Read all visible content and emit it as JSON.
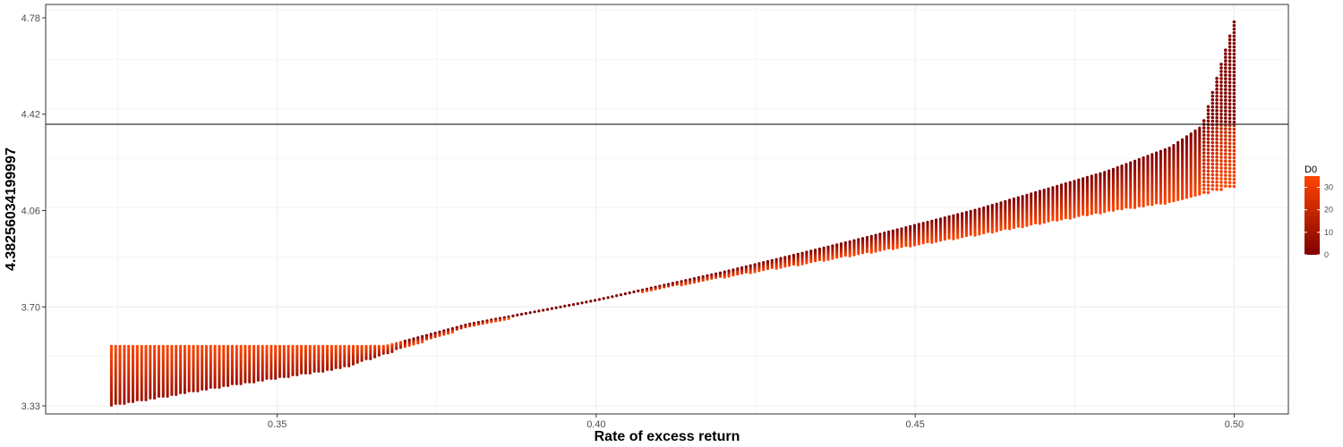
{
  "chart_data": {
    "type": "scatter",
    "xlabel": "Rate of excess return",
    "ylabel": "4.38256034199997",
    "xlim": [
      0.3137,
      0.5085
    ],
    "ylim": [
      3.3,
      4.83
    ],
    "x_ticks": [
      0.35,
      0.4,
      0.45,
      0.5
    ],
    "x_tick_labels": [
      "0.35",
      "0.40",
      "0.45",
      "0.50"
    ],
    "y_ticks": [
      3.33,
      3.7,
      4.06,
      4.42,
      4.78
    ],
    "y_tick_labels": [
      "3.33",
      "3.70",
      "4.06",
      "4.42",
      "4.78"
    ],
    "hline": 4.38256034199997,
    "grid": true,
    "legend": {
      "title": "D0",
      "position": "right",
      "range": [
        0,
        35
      ],
      "ticks": [
        0,
        10,
        20,
        30
      ],
      "tick_labels": [
        "0",
        "10",
        "20",
        "30"
      ],
      "colors": [
        "#7f0000",
        "#ff4500"
      ]
    },
    "x_range": [
      0.324,
      0.5
    ],
    "series_top_envelope": [
      [
        0.324,
        3.553
      ],
      [
        0.34,
        3.553
      ],
      [
        0.367,
        3.553
      ],
      [
        0.38,
        3.635
      ],
      [
        0.4,
        3.725
      ],
      [
        0.42,
        3.83
      ],
      [
        0.44,
        3.945
      ],
      [
        0.46,
        4.065
      ],
      [
        0.48,
        4.205
      ],
      [
        0.49,
        4.295
      ],
      [
        0.495,
        4.375
      ],
      [
        0.5,
        4.765
      ]
    ],
    "series_bottom_envelope": [
      [
        0.324,
        3.33
      ],
      [
        0.34,
        3.395
      ],
      [
        0.36,
        3.47
      ],
      [
        0.38,
        3.625
      ],
      [
        0.4,
        3.725
      ],
      [
        0.42,
        3.81
      ],
      [
        0.44,
        3.89
      ],
      [
        0.46,
        3.97
      ],
      [
        0.48,
        4.055
      ],
      [
        0.49,
        4.09
      ],
      [
        0.5,
        4.15
      ]
    ]
  }
}
